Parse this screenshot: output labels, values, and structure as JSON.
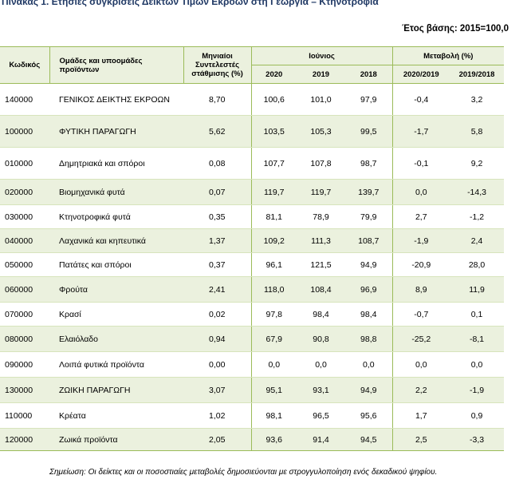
{
  "title": "Πίνακας 1. Ετήσιες συγκρίσεις Δεικτών Τιμών Εκροών στη Γεωργία – Κτηνοτροφία",
  "base_year": "Έτος βάσης: 2015=100,0",
  "headers": {
    "code": "Κωδικός",
    "groups": "Ομάδες και υποομάδες προϊόντων",
    "weights": "Μηνιαίοι Συντελεστές στάθμισης (%)",
    "june": "Ιούνιος",
    "change": "Μεταβολή (%)",
    "y2020": "2020",
    "y2019": "2019",
    "y2018": "2018",
    "c1": "2020/2019",
    "c2": "2019/2018"
  },
  "rows": [
    {
      "code": "140000",
      "name": "ΓΕΝΙΚΟΣ ΔΕΙΚΤΗΣ ΕΚΡΟΩΝ",
      "weight": "8,70",
      "v2020": "100,6",
      "v2019": "101,0",
      "v2018": "97,9",
      "ch1": "-0,4",
      "ch2": "3,2",
      "shade": false,
      "h": 40
    },
    {
      "code": "100000",
      "name": "ΦΥΤΙΚΗ ΠΑΡΑΓΩΓΗ",
      "weight": "5,62",
      "v2020": "103,5",
      "v2019": "105,3",
      "v2018": "99,5",
      "ch1": "-1,7",
      "ch2": "5,8",
      "shade": true,
      "h": 40
    },
    {
      "code": "010000",
      "name": "Δημητριακά και σπόροι",
      "weight": "0,08",
      "v2020": "107,7",
      "v2019": "107,8",
      "v2018": "98,7",
      "ch1": "-0,1",
      "ch2": "9,2",
      "shade": false,
      "h": 40
    },
    {
      "code": "020000",
      "name": "Βιομηχανικά φυτά",
      "weight": "0,07",
      "v2020": "119,7",
      "v2019": "119,7",
      "v2018": "139,7",
      "ch1": "0,0",
      "ch2": "-14,3",
      "shade": true,
      "h": 32
    },
    {
      "code": "030000",
      "name": "Κτηνοτροφικά φυτά",
      "weight": "0,35",
      "v2020": "81,1",
      "v2019": "78,9",
      "v2018": "79,9",
      "ch1": "2,7",
      "ch2": "-1,2",
      "shade": false,
      "h": 30
    },
    {
      "code": "040000",
      "name": "Λαχανικά και κηπευτικά",
      "weight": "1,37",
      "v2020": "109,2",
      "v2019": "111,3",
      "v2018": "108,7",
      "ch1": "-1,9",
      "ch2": "2,4",
      "shade": true,
      "h": 30
    },
    {
      "code": "050000",
      "name": "Πατάτες και σπόροι",
      "weight": "0,37",
      "v2020": "96,1",
      "v2019": "121,5",
      "v2018": "94,9",
      "ch1": "-20,9",
      "ch2": "28,0",
      "shade": false,
      "h": 30
    },
    {
      "code": "060000",
      "name": "Φρούτα",
      "weight": "2,41",
      "v2020": "118,0",
      "v2019": "108,4",
      "v2018": "96,9",
      "ch1": "8,9",
      "ch2": "11,9",
      "shade": true,
      "h": 32
    },
    {
      "code": "070000",
      "name": "Κρασί",
      "weight": "0,02",
      "v2020": "97,8",
      "v2019": "98,4",
      "v2018": "98,4",
      "ch1": "-0,7",
      "ch2": "0,1",
      "shade": false,
      "h": 30
    },
    {
      "code": "080000",
      "name": "Ελαιόλαδο",
      "weight": "0,94",
      "v2020": "67,9",
      "v2019": "90,8",
      "v2018": "98,8",
      "ch1": "-25,2",
      "ch2": "-8,1",
      "shade": true,
      "h": 32
    },
    {
      "code": "090000",
      "name": "Λοιπά φυτικά προϊόντα",
      "weight": "0,00",
      "v2020": "0,0",
      "v2019": "0,0",
      "v2018": "0,0",
      "ch1": "0,0",
      "ch2": "0,0",
      "shade": false,
      "h": 32
    },
    {
      "code": "130000",
      "name": "ΖΩΙΚΗ ΠΑΡΑΓΩΓΗ",
      "weight": "3,07",
      "v2020": "95,1",
      "v2019": "93,1",
      "v2018": "94,9",
      "ch1": "2,2",
      "ch2": "-1,9",
      "shade": true,
      "h": 32
    },
    {
      "code": "110000",
      "name": "Κρέατα",
      "weight": "1,02",
      "v2020": "98,1",
      "v2019": "96,5",
      "v2018": "95,6",
      "ch1": "1,7",
      "ch2": "0,9",
      "shade": false,
      "h": 32
    },
    {
      "code": "120000",
      "name": "Ζωικά προϊόντα",
      "weight": "2,05",
      "v2020": "93,6",
      "v2019": "91,4",
      "v2018": "94,5",
      "ch1": "2,5",
      "ch2": "-3,3",
      "shade": true,
      "h": 28
    }
  ],
  "note": "Σημείωση: Οι δείκτες και οι ποσοστιαίες μεταβολές δημοσιεύονται με στρογγυλοποίηση ενός δεκαδικού ψηφίου."
}
